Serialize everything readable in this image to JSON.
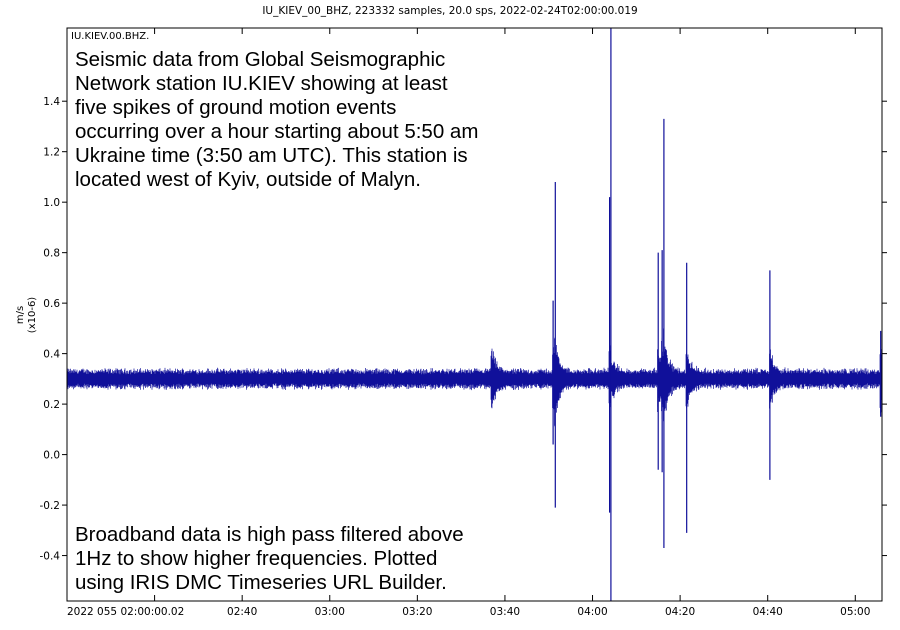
{
  "chart_data": {
    "type": "line",
    "title": "IU_KIEV_00_BHZ, 223332 samples, 20.0 sps, 2022-02-24T02:00:00.019",
    "trace_label": "IU.KIEV.00.BHZ.",
    "ylabel_line1": "m/s",
    "ylabel_line2": "(x10-6)",
    "xlabel": "",
    "x_unit": "minutes since 2022-02-24 02:00:00 UTC",
    "xlim": [
      0,
      186.1
    ],
    "ylim": [
      -0.58,
      1.69
    ],
    "grid": false,
    "y_ticks": [
      {
        "value": -0.4,
        "label": "-0.4"
      },
      {
        "value": -0.2,
        "label": "-0.2"
      },
      {
        "value": 0.0,
        "label": "0.0"
      },
      {
        "value": 0.2,
        "label": "0.2"
      },
      {
        "value": 0.4,
        "label": "0.4"
      },
      {
        "value": 0.6,
        "label": "0.6"
      },
      {
        "value": 0.8,
        "label": "0.8"
      },
      {
        "value": 1.0,
        "label": "1.0"
      },
      {
        "value": 1.2,
        "label": "1.2"
      },
      {
        "value": 1.4,
        "label": "1.4"
      }
    ],
    "x_ticks": [
      {
        "value": 0,
        "label": "2022 055 02:00:00.02"
      },
      {
        "value": 20,
        "label": ""
      },
      {
        "value": 40,
        "label": "02:40"
      },
      {
        "value": 60,
        "label": "03:00"
      },
      {
        "value": 80,
        "label": "03:20"
      },
      {
        "value": 100,
        "label": "03:40"
      },
      {
        "value": 120,
        "label": "04:00"
      },
      {
        "value": 140,
        "label": "04:20"
      },
      {
        "value": 160,
        "label": "04:40"
      },
      {
        "value": 180,
        "label": "05:00"
      }
    ],
    "baseline": 0.3,
    "noise_amplitude": 0.045,
    "marker_line_time": 124.2,
    "events": [
      {
        "time": 111.0,
        "max": 0.61,
        "min": 0.04
      },
      {
        "time": 111.5,
        "max": 1.08,
        "min": -0.21
      },
      {
        "time": 123.9,
        "max": 1.02,
        "min": -0.23
      },
      {
        "time": 135.0,
        "max": 0.8,
        "min": -0.06
      },
      {
        "time": 135.9,
        "max": 0.81,
        "min": -0.07
      },
      {
        "time": 136.3,
        "max": 1.33,
        "min": -0.37
      },
      {
        "time": 141.5,
        "max": 0.76,
        "min": -0.31
      },
      {
        "time": 160.5,
        "max": 0.73,
        "min": -0.1
      },
      {
        "time": 185.8,
        "max": 0.49,
        "min": 0.15
      }
    ],
    "minor_bumps": [
      {
        "time": 97.0,
        "max": 0.41,
        "min": 0.24
      }
    ],
    "series_color": "#10109a"
  },
  "annotations": {
    "top": [
      "Seismic data from Global Seismographic",
      "Network station IU.KIEV showing at least",
      "five spikes of ground motion events",
      "occurring over a hour starting about 5:50 am",
      "Ukraine time (3:50 am UTC). This station is",
      "located west of Kyiv, outside of Malyn."
    ],
    "bottom": [
      "Broadband data is high pass filtered above",
      "1Hz to show higher frequencies. Plotted",
      "using IRIS DMC Timeseries URL Builder."
    ]
  }
}
